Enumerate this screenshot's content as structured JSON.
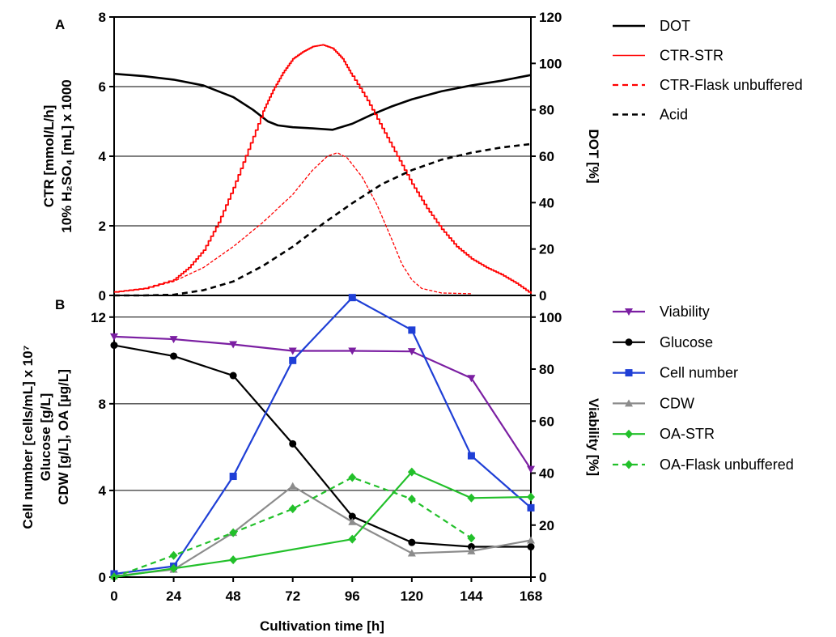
{
  "x_axis": {
    "label": "Cultivation time [h]",
    "ticks": [
      "0",
      "24",
      "48",
      "72",
      "96",
      "120",
      "144",
      "168"
    ]
  },
  "panel_a": {
    "letter": "A",
    "left_label_lines": [
      "CTR [mmol/L/h]",
      "10% H₂SO₄ [mL] x 1000"
    ],
    "right_label": "DOT [%]",
    "left_ticks": [
      "0",
      "2",
      "4",
      "6",
      "8"
    ],
    "right_ticks": [
      "0",
      "20",
      "40",
      "60",
      "80",
      "100",
      "120"
    ],
    "legend": [
      "DOT",
      "CTR-STR",
      "CTR-Flask unbuffered",
      "Acid"
    ]
  },
  "panel_b": {
    "letter": "B",
    "left_label_lines": [
      "Cell number [cells/mL] x 10⁷",
      "Glucose [g/L]",
      "CDW [g/L], OA [µg/L]"
    ],
    "right_label": "Viability [%]",
    "left_ticks": [
      "0",
      "4",
      "8",
      "12"
    ],
    "right_ticks": [
      "0",
      "20",
      "40",
      "60",
      "80",
      "100"
    ],
    "legend": [
      "Viability",
      "Glucose",
      "Cell number",
      "CDW",
      "OA-STR",
      "OA-Flask unbuffered"
    ]
  },
  "colors": {
    "dot": "#000000",
    "ctr_str": "#ff0000",
    "ctr_flask": "#ff0000",
    "acid": "#000000",
    "viability": "#7b1fa2",
    "glucose": "#000000",
    "cell_number": "#1f3fd6",
    "cdw": "#8c8c8c",
    "oa_str": "#22c02a",
    "oa_flask": "#22c02a"
  },
  "chart_data": [
    {
      "type": "line",
      "panel": "A",
      "xlabel": "Cultivation time [h]",
      "ylabel": "CTR [mmol/L/h] / 10% H2SO4 [mL] x 1000",
      "y2label": "DOT [%]",
      "xlim": [
        0,
        168
      ],
      "ylim": [
        0,
        8
      ],
      "y2lim": [
        0,
        120
      ],
      "grid": "horizontal",
      "legend_position": "right",
      "series": [
        {
          "name": "DOT",
          "axis": "right",
          "style": "solid",
          "x": [
            0,
            12,
            24,
            36,
            48,
            56,
            62,
            66,
            72,
            80,
            88,
            96,
            104,
            112,
            120,
            132,
            144,
            156,
            168
          ],
          "y": [
            95.5,
            94.5,
            93,
            90.5,
            85.5,
            80,
            75,
            73.3,
            72.5,
            72,
            71.4,
            74,
            78,
            81.5,
            84.5,
            88,
            90.5,
            92.5,
            95
          ]
        },
        {
          "name": "CTR-STR",
          "axis": "left",
          "style": "solid-stepped",
          "x": [
            0,
            12,
            24,
            30,
            36,
            42,
            48,
            54,
            60,
            64,
            68,
            72,
            76,
            80,
            84,
            88,
            92,
            96,
            102,
            108,
            114,
            120,
            126,
            132,
            138,
            144,
            150,
            156,
            162,
            168
          ],
          "y": [
            0.1,
            0.2,
            0.45,
            0.8,
            1.3,
            2.1,
            3.1,
            4.2,
            5.3,
            5.9,
            6.4,
            6.8,
            7.0,
            7.15,
            7.2,
            7.1,
            6.8,
            6.3,
            5.6,
            4.8,
            4.0,
            3.2,
            2.5,
            1.9,
            1.4,
            1.05,
            0.8,
            0.6,
            0.35,
            0.05
          ]
        },
        {
          "name": "CTR-Flask unbuffered",
          "axis": "left",
          "style": "dashed",
          "x": [
            0,
            12,
            24,
            36,
            48,
            60,
            72,
            80,
            86,
            90,
            94,
            100,
            106,
            112,
            116,
            120,
            124,
            132,
            144
          ],
          "y": [
            0.1,
            0.2,
            0.4,
            0.8,
            1.4,
            2.1,
            2.9,
            3.6,
            4.0,
            4.1,
            3.95,
            3.4,
            2.6,
            1.6,
            0.9,
            0.45,
            0.2,
            0.07,
            0.05
          ]
        },
        {
          "name": "Acid",
          "axis": "left",
          "style": "dashed",
          "x": [
            0,
            12,
            24,
            36,
            48,
            60,
            72,
            84,
            96,
            108,
            120,
            132,
            144,
            156,
            168
          ],
          "y": [
            0,
            0,
            0.02,
            0.15,
            0.4,
            0.85,
            1.4,
            2.05,
            2.65,
            3.2,
            3.6,
            3.9,
            4.1,
            4.25,
            4.35
          ]
        }
      ]
    },
    {
      "type": "line",
      "panel": "B",
      "xlabel": "Cultivation time [h]",
      "ylabel": "Cell number [cells/mL] x 10^7 / Glucose [g/L] / CDW [g/L], OA [µg/L]",
      "y2label": "Viability [%]",
      "xlim": [
        0,
        168
      ],
      "ylim": [
        0,
        13
      ],
      "y2lim": [
        0,
        108.33
      ],
      "grid": "horizontal",
      "legend_position": "right",
      "series": [
        {
          "name": "Viability",
          "axis": "right",
          "marker": "triangle-down",
          "style": "solid",
          "x": [
            0,
            24,
            48,
            72,
            96,
            120,
            144,
            168
          ],
          "y": [
            92.5,
            91.5,
            89.5,
            87,
            87,
            86.8,
            76.5,
            41.5
          ]
        },
        {
          "name": "Glucose",
          "axis": "left",
          "marker": "circle",
          "style": "solid",
          "x": [
            0,
            24,
            48,
            72,
            96,
            120,
            144,
            168
          ],
          "y": [
            10.7,
            10.2,
            9.3,
            6.15,
            2.8,
            1.6,
            1.4,
            1.4
          ]
        },
        {
          "name": "Cell number",
          "axis": "left",
          "marker": "square",
          "style": "solid",
          "x": [
            0,
            24,
            48,
            72,
            96,
            120,
            144,
            168
          ],
          "y": [
            0.15,
            0.5,
            4.65,
            10.0,
            12.9,
            11.4,
            5.6,
            3.2
          ]
        },
        {
          "name": "CDW",
          "axis": "left",
          "marker": "triangle-up",
          "style": "solid",
          "x": [
            0,
            24,
            48,
            72,
            96,
            120,
            144,
            168
          ],
          "y": [
            0.05,
            0.35,
            2.05,
            4.2,
            2.55,
            1.1,
            1.2,
            1.7
          ]
        },
        {
          "name": "OA-STR",
          "axis": "left",
          "marker": "diamond",
          "style": "solid",
          "x": [
            0,
            24,
            48,
            96,
            120,
            144,
            168
          ],
          "y": [
            0,
            0.4,
            0.8,
            1.75,
            4.85,
            3.65,
            3.7
          ]
        },
        {
          "name": "OA-Flask unbuffered",
          "axis": "left",
          "marker": "diamond",
          "style": "dashed",
          "x": [
            0,
            24,
            48,
            72,
            96,
            120,
            144
          ],
          "y": [
            0,
            1.0,
            2.05,
            3.15,
            4.6,
            3.6,
            1.8
          ]
        }
      ]
    }
  ]
}
